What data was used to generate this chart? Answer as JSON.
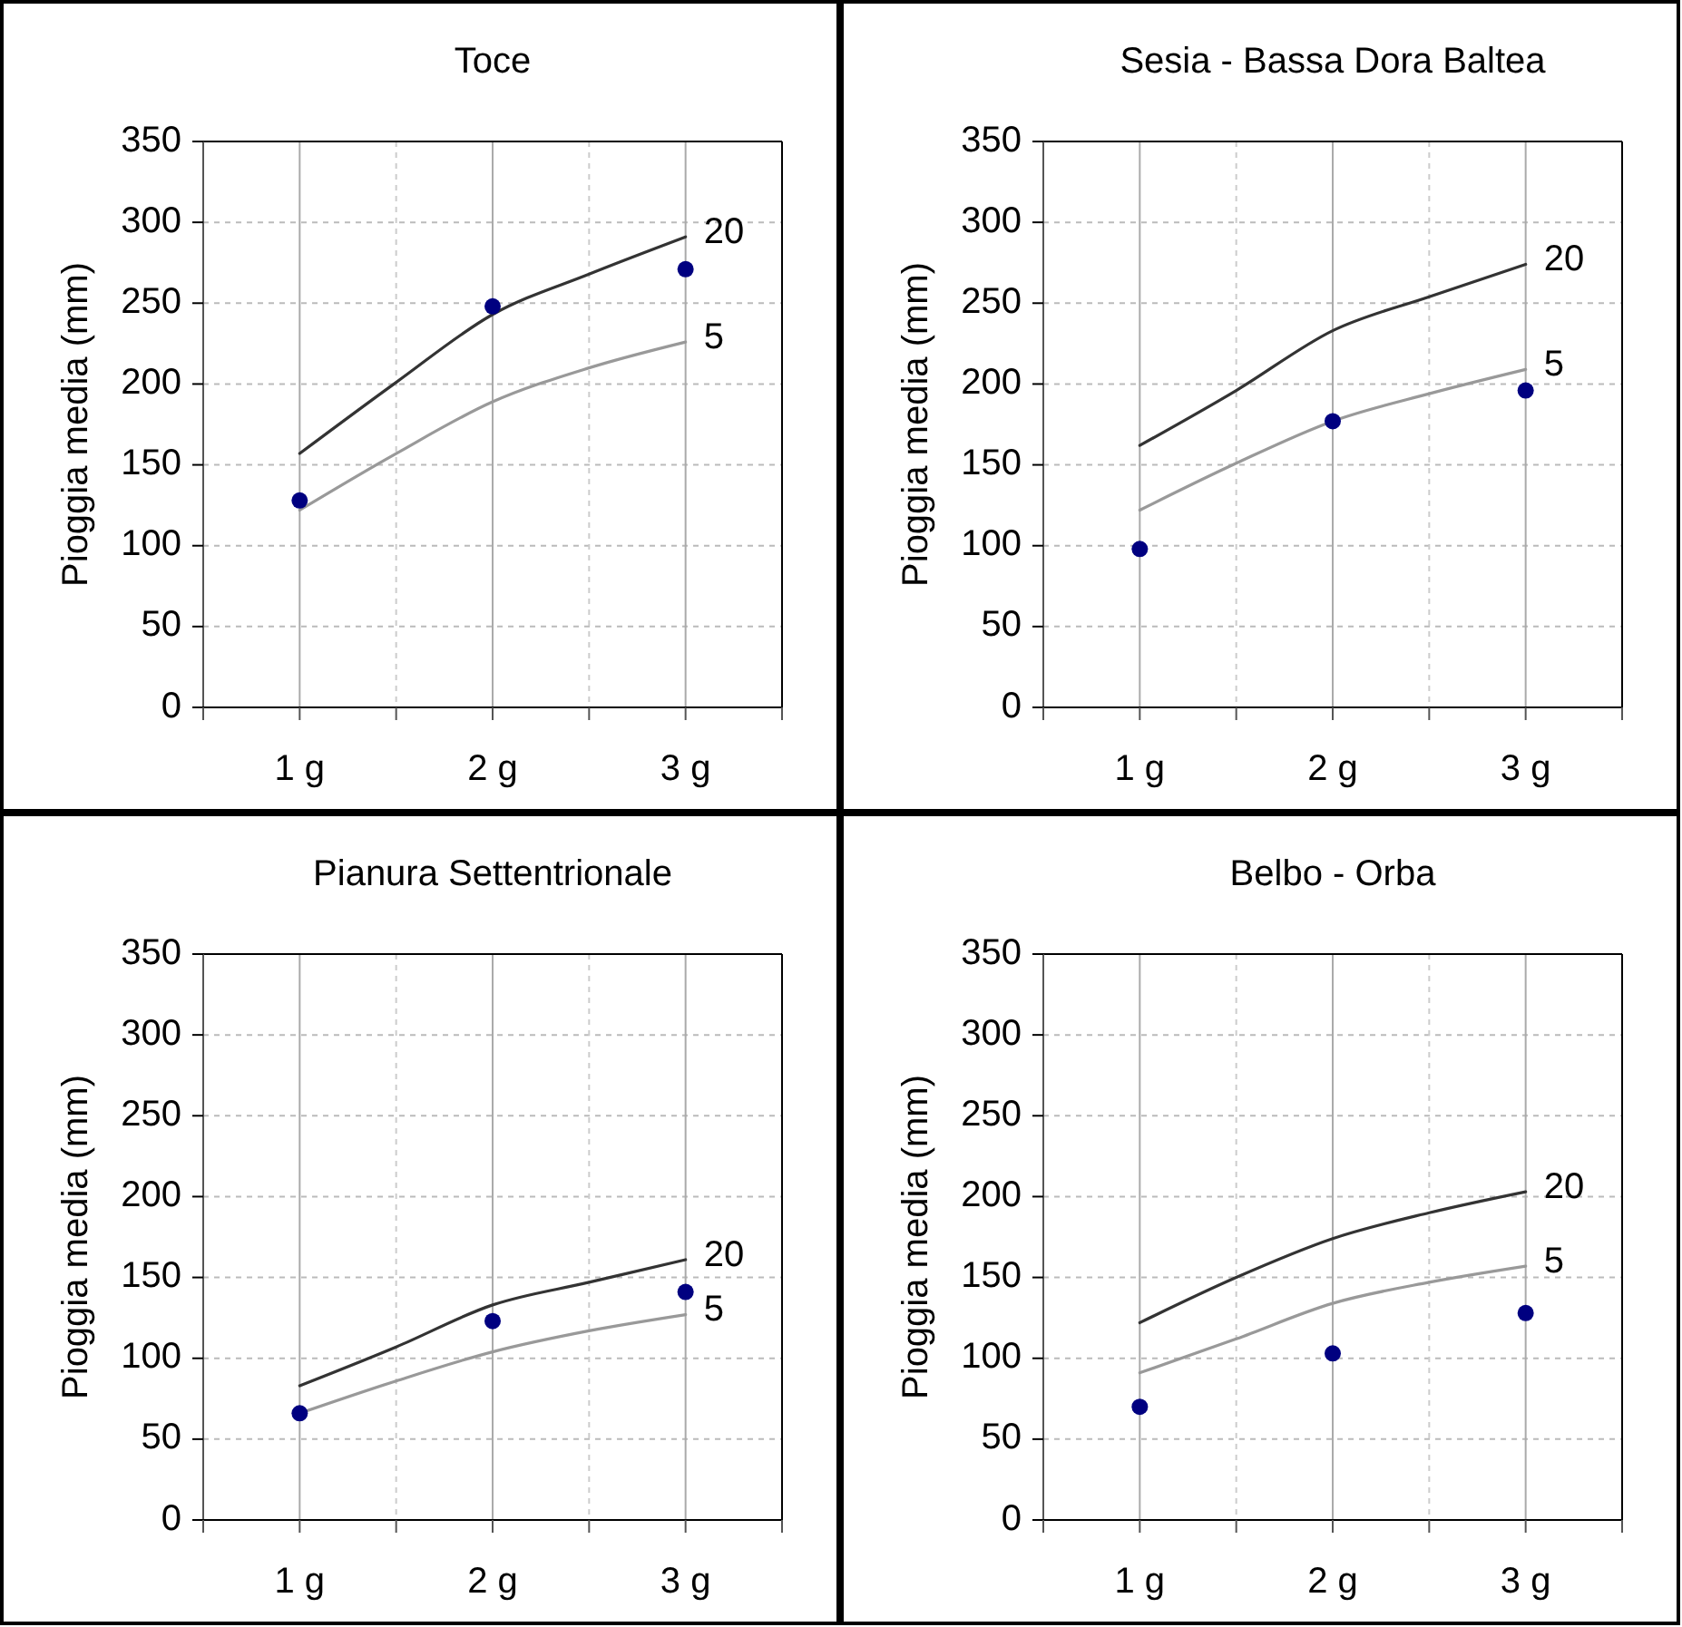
{
  "chart_data": [
    {
      "type": "line",
      "title": "Toce",
      "ylabel": "Pioggia media (mm)",
      "xlim": [
        0.5,
        3.5
      ],
      "xticks": [
        {
          "value": 0.5,
          "label": null
        },
        {
          "value": 1,
          "label": "1 g"
        },
        {
          "value": 1.5,
          "label": null
        },
        {
          "value": 2,
          "label": "2 g"
        },
        {
          "value": 2.5,
          "label": null
        },
        {
          "value": 3,
          "label": "3 g"
        },
        {
          "value": 3.5,
          "label": null
        }
      ],
      "ylim": [
        0,
        350
      ],
      "yticks": [
        0,
        50,
        100,
        150,
        200,
        250,
        300,
        350
      ],
      "grid": true,
      "series": [
        {
          "name": "20",
          "type": "line",
          "color": "#333333",
          "x": [
            1,
            1.5,
            2,
            2.5,
            3
          ],
          "values": [
            157,
            201,
            243,
            268,
            291
          ]
        },
        {
          "name": "5",
          "type": "line",
          "color": "#999999",
          "x": [
            1,
            1.5,
            2,
            2.5,
            3
          ],
          "values": [
            122,
            157,
            189,
            210,
            226
          ]
        },
        {
          "type": "scatter",
          "marker": "circle",
          "color": "#000080",
          "x": [
            1,
            2,
            3
          ],
          "values": [
            128,
            248,
            271
          ]
        }
      ]
    },
    {
      "type": "line",
      "title": "Sesia - Bassa Dora Baltea",
      "ylabel": "Pioggia media (mm)",
      "xlim": [
        0.5,
        3.5
      ],
      "xticks": [
        {
          "value": 0.5,
          "label": null
        },
        {
          "value": 1,
          "label": "1 g"
        },
        {
          "value": 1.5,
          "label": null
        },
        {
          "value": 2,
          "label": "2 g"
        },
        {
          "value": 2.5,
          "label": null
        },
        {
          "value": 3,
          "label": "3 g"
        },
        {
          "value": 3.5,
          "label": null
        }
      ],
      "ylim": [
        0,
        350
      ],
      "yticks": [
        0,
        50,
        100,
        150,
        200,
        250,
        300,
        350
      ],
      "grid": true,
      "series": [
        {
          "name": "20",
          "type": "line",
          "color": "#333333",
          "x": [
            1,
            1.5,
            2,
            2.5,
            3
          ],
          "values": [
            162,
            196,
            233,
            254,
            274
          ]
        },
        {
          "name": "5",
          "type": "line",
          "color": "#999999",
          "x": [
            1,
            1.5,
            2,
            2.5,
            3
          ],
          "values": [
            122,
            151,
            177,
            194,
            209
          ]
        },
        {
          "type": "scatter",
          "marker": "circle",
          "color": "#000080",
          "x": [
            1,
            2,
            3
          ],
          "values": [
            98,
            177,
            196
          ]
        }
      ]
    },
    {
      "type": "line",
      "title": "Pianura Settentrionale",
      "ylabel": "Pioggia media (mm)",
      "xlim": [
        0.5,
        3.5
      ],
      "xticks": [
        {
          "value": 0.5,
          "label": null
        },
        {
          "value": 1,
          "label": "1 g"
        },
        {
          "value": 1.5,
          "label": null
        },
        {
          "value": 2,
          "label": "2 g"
        },
        {
          "value": 2.5,
          "label": null
        },
        {
          "value": 3,
          "label": "3 g"
        },
        {
          "value": 3.5,
          "label": null
        }
      ],
      "ylim": [
        0,
        350
      ],
      "yticks": [
        0,
        50,
        100,
        150,
        200,
        250,
        300,
        350
      ],
      "grid": true,
      "series": [
        {
          "name": "20",
          "type": "line",
          "color": "#333333",
          "x": [
            1,
            1.5,
            2,
            2.5,
            3
          ],
          "values": [
            83,
            107,
            133,
            147,
            161
          ]
        },
        {
          "name": "5",
          "type": "line",
          "color": "#999999",
          "x": [
            1,
            1.5,
            2,
            2.5,
            3
          ],
          "values": [
            66,
            86,
            104,
            117,
            127
          ]
        },
        {
          "type": "scatter",
          "marker": "circle",
          "color": "#000080",
          "x": [
            1,
            2,
            3
          ],
          "values": [
            66,
            123,
            141
          ]
        }
      ]
    },
    {
      "type": "line",
      "title": "Belbo - Orba",
      "ylabel": "Pioggia media (mm)",
      "xlim": [
        0.5,
        3.5
      ],
      "xticks": [
        {
          "value": 0.5,
          "label": null
        },
        {
          "value": 1,
          "label": "1 g"
        },
        {
          "value": 1.5,
          "label": null
        },
        {
          "value": 2,
          "label": "2 g"
        },
        {
          "value": 2.5,
          "label": null
        },
        {
          "value": 3,
          "label": "3 g"
        },
        {
          "value": 3.5,
          "label": null
        }
      ],
      "ylim": [
        0,
        350
      ],
      "yticks": [
        0,
        50,
        100,
        150,
        200,
        250,
        300,
        350
      ],
      "grid": true,
      "series": [
        {
          "name": "20",
          "type": "line",
          "color": "#333333",
          "x": [
            1,
            1.5,
            2,
            2.5,
            3
          ],
          "values": [
            122,
            150,
            174,
            190,
            203
          ]
        },
        {
          "name": "5",
          "type": "line",
          "color": "#999999",
          "x": [
            1,
            1.5,
            2,
            2.5,
            3
          ],
          "values": [
            91,
            112,
            134,
            147,
            157
          ]
        },
        {
          "type": "scatter",
          "marker": "circle",
          "color": "#000080",
          "x": [
            1,
            2,
            3
          ],
          "values": [
            70,
            103,
            128
          ]
        }
      ]
    }
  ]
}
